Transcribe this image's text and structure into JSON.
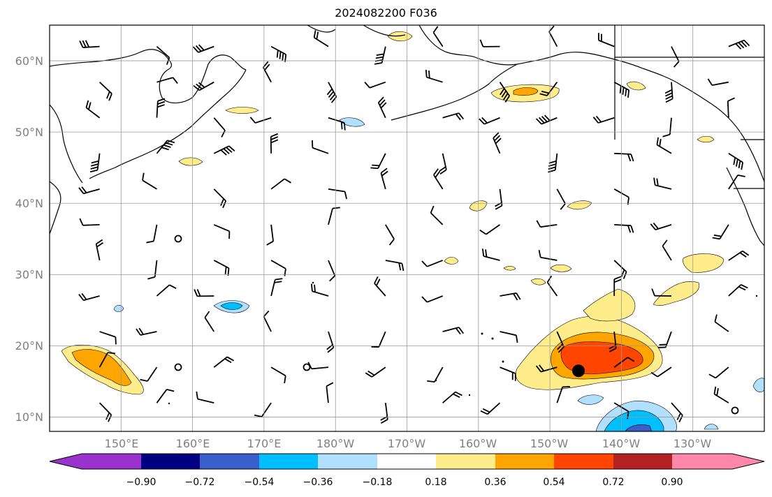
{
  "title": "2024082200 F036",
  "lat_labels": [
    "60°N",
    "50°N",
    "40°N",
    "30°N",
    "20°N",
    "10°N"
  ],
  "lon_labels": [
    "150°E",
    "160°E",
    "170°E",
    "180°W",
    "170°W",
    "160°W",
    "150°W",
    "140°W",
    "130°W"
  ],
  "colorbar": {
    "tick_labels": [
      "−0.90",
      "−0.72",
      "−0.54",
      "−0.36",
      "−0.18",
      "0.18",
      "0.36",
      "0.54",
      "0.72",
      "0.90"
    ],
    "colors": [
      "#9a32cd",
      "#000080",
      "#3a5fcd",
      "#00bfff",
      "#b0e0fe",
      "#ffffff",
      "#ffec8b",
      "#ffa500",
      "#ff4500",
      "#b22222",
      "#ff88aa"
    ],
    "extend": "both"
  },
  "map": {
    "extent": {
      "lon_min": 140,
      "lon_max": 240,
      "lat_min": 8,
      "lat_max": 65
    },
    "gridlines": true,
    "storm_center": {
      "lon": 214.0,
      "lat": 16.5
    },
    "land_color": "#ffffff",
    "coast_color": "#000000"
  }
}
